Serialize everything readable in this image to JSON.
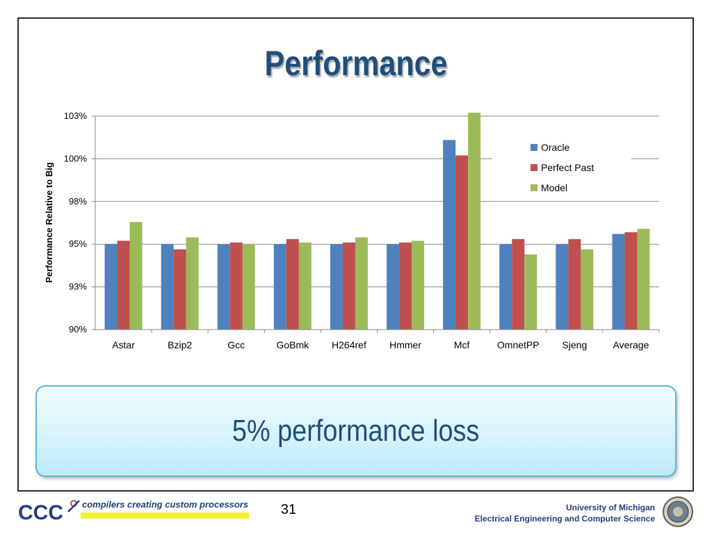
{
  "slide": {
    "title": "Performance",
    "callout": "5% performance loss",
    "page_number": "31"
  },
  "footer": {
    "logo_text": "CCC",
    "tagline": "compilers creating custom processors",
    "institution": "University of Michigan",
    "department": "Electrical Engineering and Computer Science"
  },
  "colors": {
    "title": "#1f4e79",
    "oracle": "#4f81bd",
    "perfect_past": "#c0504d",
    "model": "#9bbb59",
    "callout_border": "#5ab7cf"
  },
  "chart_data": {
    "type": "bar",
    "title": "",
    "xlabel": "",
    "ylabel": "Performance Relative to Big",
    "categories": [
      "Astar",
      "Bzip2",
      "Gcc",
      "GoBmk",
      "H264ref",
      "Hmmer",
      "Mcf",
      "OmnetPP",
      "Sjeng",
      "Average"
    ],
    "series": [
      {
        "name": "Oracle",
        "color": "#4f81bd",
        "values": [
          95.0,
          95.0,
          95.0,
          95.0,
          95.0,
          95.0,
          101.1,
          95.0,
          95.0,
          95.6
        ]
      },
      {
        "name": "Perfect Past",
        "color": "#c0504d",
        "values": [
          95.2,
          94.7,
          95.1,
          95.3,
          95.1,
          95.1,
          100.2,
          95.3,
          95.3,
          95.7
        ]
      },
      {
        "name": "Model",
        "color": "#9bbb59",
        "values": [
          96.3,
          95.4,
          95.0,
          95.1,
          95.4,
          95.2,
          102.7,
          94.4,
          94.7,
          95.9
        ]
      }
    ],
    "ylim": [
      90,
      102.5
    ],
    "yticks": [
      {
        "value": 90,
        "label": "90%"
      },
      {
        "value": 92.5,
        "label": "93%"
      },
      {
        "value": 95,
        "label": "95%"
      },
      {
        "value": 97.5,
        "label": "98%"
      },
      {
        "value": 100,
        "label": "100%"
      },
      {
        "value": 102.5,
        "label": "103%"
      }
    ],
    "grid": true,
    "legend_position": "top-right"
  }
}
